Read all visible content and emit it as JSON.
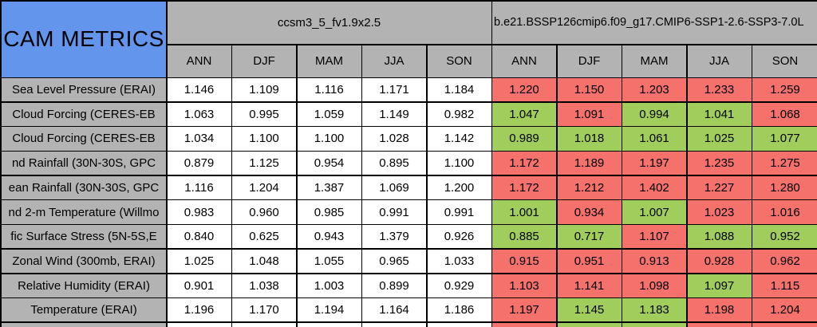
{
  "chart_data": {
    "type": "table",
    "title": "CAM METRICS",
    "column_groups": [
      "ccsm3_5_fv1.9x2.5",
      "b.e21.BSSP126cmip6.f09_g17.CMIP6-SSP1-2.6-SSP3-7.0L"
    ],
    "columns": [
      "ANN",
      "DJF",
      "MAM",
      "JJA",
      "SON"
    ],
    "rows": [
      {
        "label": "Sea Level Pressure (ERAI)",
        "baseline": [
          "1.146",
          "1.109",
          "1.116",
          "1.171",
          "1.184"
        ],
        "test": [
          "1.220",
          "1.150",
          "1.203",
          "1.233",
          "1.259"
        ],
        "test_colors": [
          "red",
          "red",
          "red",
          "red",
          "red"
        ]
      },
      {
        "label": "Cloud Forcing (CERES-EB",
        "baseline": [
          "1.063",
          "0.995",
          "1.059",
          "1.149",
          "0.982"
        ],
        "test": [
          "1.047",
          "1.091",
          "0.994",
          "1.041",
          "1.068"
        ],
        "test_colors": [
          "green",
          "red",
          "green",
          "green",
          "red"
        ]
      },
      {
        "label": "Cloud Forcing (CERES-EB",
        "baseline": [
          "1.034",
          "1.100",
          "1.100",
          "1.028",
          "1.142"
        ],
        "test": [
          "0.989",
          "1.018",
          "1.061",
          "1.025",
          "1.077"
        ],
        "test_colors": [
          "green",
          "green",
          "green",
          "green",
          "green"
        ]
      },
      {
        "label": "nd Rainfall (30N-30S, GPC",
        "baseline": [
          "0.879",
          "1.125",
          "0.954",
          "0.895",
          "1.100"
        ],
        "test": [
          "1.172",
          "1.189",
          "1.197",
          "1.235",
          "1.275"
        ],
        "test_colors": [
          "red",
          "red",
          "red",
          "red",
          "red"
        ]
      },
      {
        "label": "ean Rainfall (30N-30S, GPC",
        "baseline": [
          "1.116",
          "1.204",
          "1.387",
          "1.069",
          "1.200"
        ],
        "test": [
          "1.172",
          "1.212",
          "1.402",
          "1.227",
          "1.280"
        ],
        "test_colors": [
          "red",
          "red",
          "red",
          "red",
          "red"
        ]
      },
      {
        "label": "nd 2-m Temperature (Willmo",
        "baseline": [
          "0.983",
          "0.960",
          "0.985",
          "0.991",
          "0.991"
        ],
        "test": [
          "1.001",
          "0.934",
          "1.007",
          "1.023",
          "1.016"
        ],
        "test_colors": [
          "green",
          "red",
          "green",
          "red",
          "red"
        ]
      },
      {
        "label": "fic Surface Stress (5N-5S,E",
        "baseline": [
          "0.840",
          "0.625",
          "0.943",
          "1.379",
          "0.926"
        ],
        "test": [
          "0.885",
          "0.717",
          "1.107",
          "1.088",
          "0.952"
        ],
        "test_colors": [
          "green",
          "green",
          "red",
          "green",
          "green"
        ]
      },
      {
        "label": "Zonal Wind (300mb, ERAI)",
        "baseline": [
          "1.025",
          "1.048",
          "1.055",
          "0.965",
          "1.033"
        ],
        "test": [
          "0.915",
          "0.951",
          "0.913",
          "0.928",
          "0.962"
        ],
        "test_colors": [
          "red",
          "red",
          "red",
          "red",
          "red"
        ]
      },
      {
        "label": "Relative Humidity (ERAI)",
        "baseline": [
          "0.901",
          "1.038",
          "1.003",
          "0.899",
          "0.929"
        ],
        "test": [
          "1.103",
          "1.141",
          "1.098",
          "1.097",
          "1.115"
        ],
        "test_colors": [
          "red",
          "red",
          "red",
          "green",
          "red"
        ]
      },
      {
        "label": "Temperature (ERAI)",
        "baseline": [
          "1.196",
          "1.170",
          "1.194",
          "1.164",
          "1.186"
        ],
        "test": [
          "1.197",
          "1.145",
          "1.183",
          "1.198",
          "1.204"
        ],
        "test_colors": [
          "red",
          "green",
          "green",
          "red",
          "red"
        ]
      }
    ],
    "partial_bottom_row": {
      "test_colors": [
        "red",
        "green",
        "green",
        "red",
        "red"
      ]
    }
  },
  "colors": {
    "header_blue": "#6495ED",
    "header_gray": "#B3B3B3",
    "cell_white": "#FFFFFF",
    "cell_red": "#F4716C",
    "cell_green": "#A1CD5C",
    "border": "#000000"
  }
}
